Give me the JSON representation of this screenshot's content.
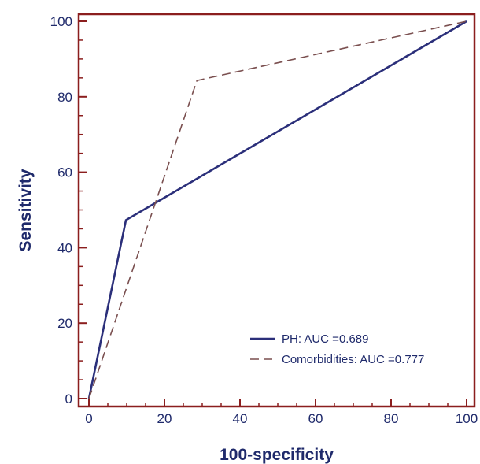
{
  "chart_data": {
    "type": "line",
    "xlabel": "100-specificity",
    "ylabel": "Sensitivity",
    "xlim": [
      0,
      100
    ],
    "ylim": [
      0,
      100
    ],
    "xticks": [
      0,
      20,
      40,
      60,
      80,
      100
    ],
    "yticks": [
      0,
      20,
      40,
      60,
      80,
      100
    ],
    "grid": false,
    "legend_position": "bottom-right",
    "series": [
      {
        "name": "PH: AUC =0.689",
        "x": [
          0,
          9.8,
          100
        ],
        "y": [
          0,
          47.3,
          100
        ],
        "color": "#2b2f7a",
        "style": "solid"
      },
      {
        "name": "Comorbidities: AUC =0.777",
        "x": [
          0,
          28.6,
          100
        ],
        "y": [
          0,
          84.3,
          100
        ],
        "color": "#7a4f4f",
        "style": "dashed"
      }
    ]
  },
  "colors": {
    "axis": "#8b1e1e",
    "text": "#1f2a6b"
  }
}
